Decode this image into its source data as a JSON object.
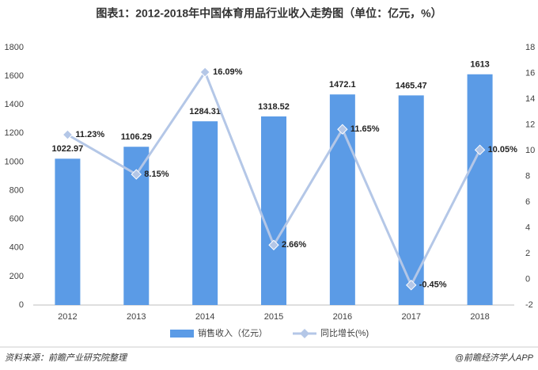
{
  "chart_data": {
    "type": "bar",
    "title": "图表1：2012-2018年中国体育用品行业收入走势图（单位：亿元，%）",
    "categories": [
      "2012",
      "2013",
      "2014",
      "2015",
      "2016",
      "2017",
      "2018"
    ],
    "series": [
      {
        "name": "销售收入（亿元）",
        "type": "bar",
        "color": "#5b9be6",
        "values": [
          1022.97,
          1106.29,
          1284.31,
          1318.52,
          1472.1,
          1465.47,
          1613
        ]
      },
      {
        "name": "同比增长(%)",
        "type": "line",
        "axis": "y2",
        "color": "#b4c7e7",
        "values": [
          11.23,
          8.15,
          16.09,
          2.66,
          11.65,
          -0.45,
          10.05
        ],
        "value_labels": [
          "11.23%",
          "8.15%",
          "16.09%",
          "2.66%",
          "11.65%",
          "-0.45%",
          "10.05%"
        ]
      }
    ],
    "ylim": [
      0,
      1800
    ],
    "yticks": [
      0,
      200,
      400,
      600,
      800,
      1000,
      1200,
      1400,
      1600,
      1800
    ],
    "y2lim": [
      -2,
      18
    ],
    "y2ticks": [
      -2,
      0,
      2,
      4,
      6,
      8,
      10,
      12,
      14,
      16,
      18
    ],
    "grid": false,
    "legend": "bottom"
  },
  "footer": {
    "source": "资料来源：前瞻产业研究院整理",
    "credit": "@前瞻经济学人APP"
  }
}
